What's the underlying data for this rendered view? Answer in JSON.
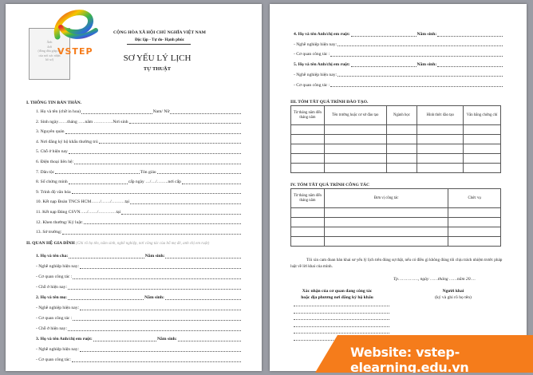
{
  "page1": {
    "photo_text": [
      "Ảnh",
      "4x6",
      "(đóng dấu giáp lai",
      "của nơi xác nhận",
      "hồ sơ)"
    ],
    "logo_text": "VSTEP",
    "nation": "CỘNG HÒA XÃ HỘI CHỦ NGHĨA VIỆT NAM",
    "motto": "Độc lập - Tự do- Hạnh phúc",
    "title": "SƠ YẾU LÝ LỊCH",
    "subtitle": "TỰ THUẬT",
    "section1": "I. THÔNG TIN BẢN THÂN.",
    "items1": [
      [
        "1. Họ và tên (chữ in hoa)",
        "Nam/ Nữ"
      ],
      [
        "2. Sinh ngày……tháng …..năm ………….Nơi sinh"
      ],
      [
        "3. Nguyên quán"
      ],
      [
        "4. Nơi đăng ký hộ khẩu thường trú"
      ],
      [
        "5. Chỗ ở hiện nay"
      ],
      [
        "6. Điện thoại liên hệ:"
      ],
      [
        "7. Dân tộc",
        "Tôn giáo"
      ],
      [
        "8. Số chứng minh",
        "cấp ngày …/…/……..nơi cấp"
      ],
      [
        "9. Trình độ văn hóa"
      ],
      [
        "10. Kết nạp Đoàn TNCS HCM……/……/………tại"
      ],
      [
        "11. Kết nạp Đảng CSVN…../……/…………tại"
      ],
      [
        "12. Khen thưởng/ Kỷ luật:"
      ],
      [
        "13. Sở trường:"
      ]
    ],
    "section2": "II. QUAN HỆ GIA ĐÌNH",
    "section2_note": "(Ghi rõ họ tên, năm sinh, nghề nghiệp, nơi công tác của bố mẹ đẻ, anh chị em ruột)",
    "items2": [
      [
        "1. Họ và tên cha:",
        "Năm sinh:",
        true
      ],
      [
        "- Nghề nghiệp hiện nay:"
      ],
      [
        "- Cơ quan công tác :"
      ],
      [
        "- Chỗ ở hiện nay:"
      ],
      [
        "2. Họ và tên mẹ:",
        "Năm sinh:",
        true
      ],
      [
        "- Nghề nghiệp hiện nay:"
      ],
      [
        "- Cơ quan công tác :"
      ],
      [
        "- Chỗ ở hiện nay:"
      ],
      [
        "3. Họ và tên Anh/chị em ruột:",
        "Năm sinh:",
        true
      ],
      [
        "- Nghề nghiệp hiện nay:"
      ],
      [
        "- Cơ quan công tác:"
      ]
    ]
  },
  "page2": {
    "items": [
      [
        "4. Họ và tên Anh/chị em ruột:",
        "Năm sinh:",
        true
      ],
      [
        "- Nghề nghiệp hiện nay:"
      ],
      [
        "- Cơ quan công tác :"
      ],
      [
        "5. Họ và tên Anh/chị em ruột:",
        "Năm sinh:",
        true
      ],
      [
        "- Nghề nghiệp hiện nay:"
      ],
      [
        "- Cơ quan công tác :"
      ]
    ],
    "section3": "III. TÓM TẮT QUÁ TRÌNH ĐÀO TẠO.",
    "table3_headers": [
      "Từ tháng năm đến tháng năm",
      "Tên trường hoặc cơ sở đào tạo",
      "Ngành học",
      "Hình thức đào tạo",
      "Văn bằng chứng chỉ"
    ],
    "table3_rows": 5,
    "section4": "IV. TÓM TẮT QUÁ TRÌNH CÔNG TÁC",
    "table4_headers": [
      "Từ tháng năm đến tháng năm",
      "Đơn vị công tác",
      "Chức vụ"
    ],
    "table4_rows": 4,
    "statement": "Tôi xin cam đoan bản khai sơ yếu lý lịch trên đúng sự thật, nếu có điều gì không đúng tôi chịu trách nhiệm trước pháp luật về lời khai của mình.",
    "date_line": "Tp……………, ngày ……tháng ……năm 20….",
    "confirm_title": "Xác nhận của cơ quan đang công tác",
    "confirm_title2": "hoặc địa phương nơi đăng ký hộ khẩu",
    "signer": "Người khai",
    "signer_note": "(ký và ghi rõ họ tên)"
  },
  "banner": {
    "text": "Website: vstep-elearning.edu.vn",
    "color": "#f57c1b"
  }
}
